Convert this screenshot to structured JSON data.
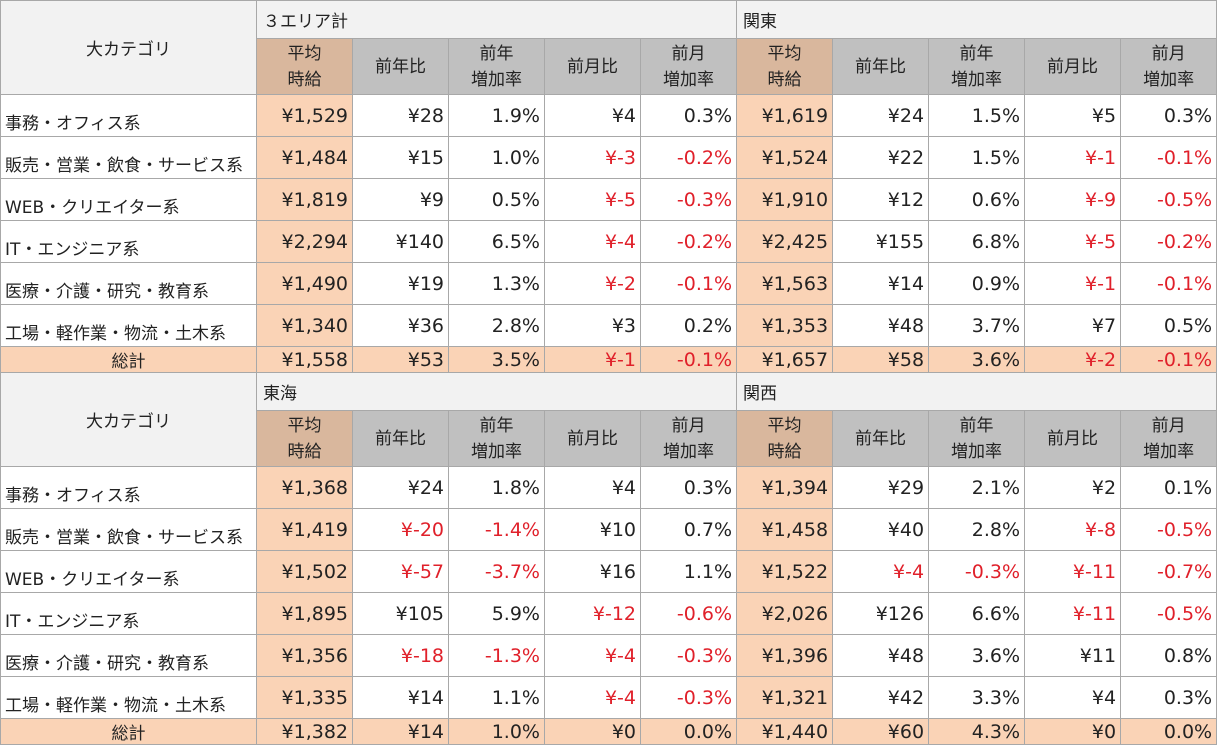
{
  "category_header": "大カテゴリ",
  "headers": {
    "avg": [
      "平均",
      "時給"
    ],
    "yoy": "前年比",
    "yoy_rate": [
      "前年",
      "増加率"
    ],
    "mom": "前月比",
    "mom_rate": [
      "前月",
      "増加率"
    ]
  },
  "colors": {
    "accent_fill": "#fad3b6",
    "header_gray": "#c0c0c0",
    "negative_text": "#e0202a"
  },
  "blocks": [
    {
      "left_region": "３エリア計",
      "right_region": "関東",
      "rows": [
        {
          "category": "事務・オフィス系",
          "left": [
            "¥1,529",
            "¥28",
            "1.9%",
            "¥4",
            "0.3%"
          ],
          "right": [
            "¥1,619",
            "¥24",
            "1.5%",
            "¥5",
            "0.3%"
          ]
        },
        {
          "category": "販売・営業・飲食・サービス系",
          "left": [
            "¥1,484",
            "¥15",
            "1.0%",
            "¥-3",
            "-0.2%"
          ],
          "right": [
            "¥1,524",
            "¥22",
            "1.5%",
            "¥-1",
            "-0.1%"
          ]
        },
        {
          "category": "WEB・クリエイター系",
          "left": [
            "¥1,819",
            "¥9",
            "0.5%",
            "¥-5",
            "-0.3%"
          ],
          "right": [
            "¥1,910",
            "¥12",
            "0.6%",
            "¥-9",
            "-0.5%"
          ]
        },
        {
          "category": "IT・エンジニア系",
          "left": [
            "¥2,294",
            "¥140",
            "6.5%",
            "¥-4",
            "-0.2%"
          ],
          "right": [
            "¥2,425",
            "¥155",
            "6.8%",
            "¥-5",
            "-0.2%"
          ]
        },
        {
          "category": "医療・介護・研究・教育系",
          "left": [
            "¥1,490",
            "¥19",
            "1.3%",
            "¥-2",
            "-0.1%"
          ],
          "right": [
            "¥1,563",
            "¥14",
            "0.9%",
            "¥-1",
            "-0.1%"
          ]
        },
        {
          "category": "工場・軽作業・物流・土木系",
          "left": [
            "¥1,340",
            "¥36",
            "2.8%",
            "¥3",
            "0.2%"
          ],
          "right": [
            "¥1,353",
            "¥48",
            "3.7%",
            "¥7",
            "0.5%"
          ]
        }
      ],
      "total": {
        "category": "総計",
        "left": [
          "¥1,558",
          "¥53",
          "3.5%",
          "¥-1",
          "-0.1%"
        ],
        "right": [
          "¥1,657",
          "¥58",
          "3.6%",
          "¥-2",
          "-0.1%"
        ]
      }
    },
    {
      "left_region": "東海",
      "right_region": "関西",
      "rows": [
        {
          "category": "事務・オフィス系",
          "left": [
            "¥1,368",
            "¥24",
            "1.8%",
            "¥4",
            "0.3%"
          ],
          "right": [
            "¥1,394",
            "¥29",
            "2.1%",
            "¥2",
            "0.1%"
          ]
        },
        {
          "category": "販売・営業・飲食・サービス系",
          "left": [
            "¥1,419",
            "¥-20",
            "-1.4%",
            "¥10",
            "0.7%"
          ],
          "right": [
            "¥1,458",
            "¥40",
            "2.8%",
            "¥-8",
            "-0.5%"
          ]
        },
        {
          "category": "WEB・クリエイター系",
          "left": [
            "¥1,502",
            "¥-57",
            "-3.7%",
            "¥16",
            "1.1%"
          ],
          "right": [
            "¥1,522",
            "¥-4",
            "-0.3%",
            "¥-11",
            "-0.7%"
          ]
        },
        {
          "category": "IT・エンジニア系",
          "left": [
            "¥1,895",
            "¥105",
            "5.9%",
            "¥-12",
            "-0.6%"
          ],
          "right": [
            "¥2,026",
            "¥126",
            "6.6%",
            "¥-11",
            "-0.5%"
          ]
        },
        {
          "category": "医療・介護・研究・教育系",
          "left": [
            "¥1,356",
            "¥-18",
            "-1.3%",
            "¥-4",
            "-0.3%"
          ],
          "right": [
            "¥1,396",
            "¥48",
            "3.6%",
            "¥11",
            "0.8%"
          ]
        },
        {
          "category": "工場・軽作業・物流・土木系",
          "left": [
            "¥1,335",
            "¥14",
            "1.1%",
            "¥-4",
            "-0.3%"
          ],
          "right": [
            "¥1,321",
            "¥42",
            "3.3%",
            "¥4",
            "0.3%"
          ]
        }
      ],
      "total": {
        "category": "総計",
        "left": [
          "¥1,382",
          "¥14",
          "1.0%",
          "¥0",
          "0.0%"
        ],
        "right": [
          "¥1,440",
          "¥60",
          "4.3%",
          "¥0",
          "0.0%"
        ]
      }
    }
  ]
}
